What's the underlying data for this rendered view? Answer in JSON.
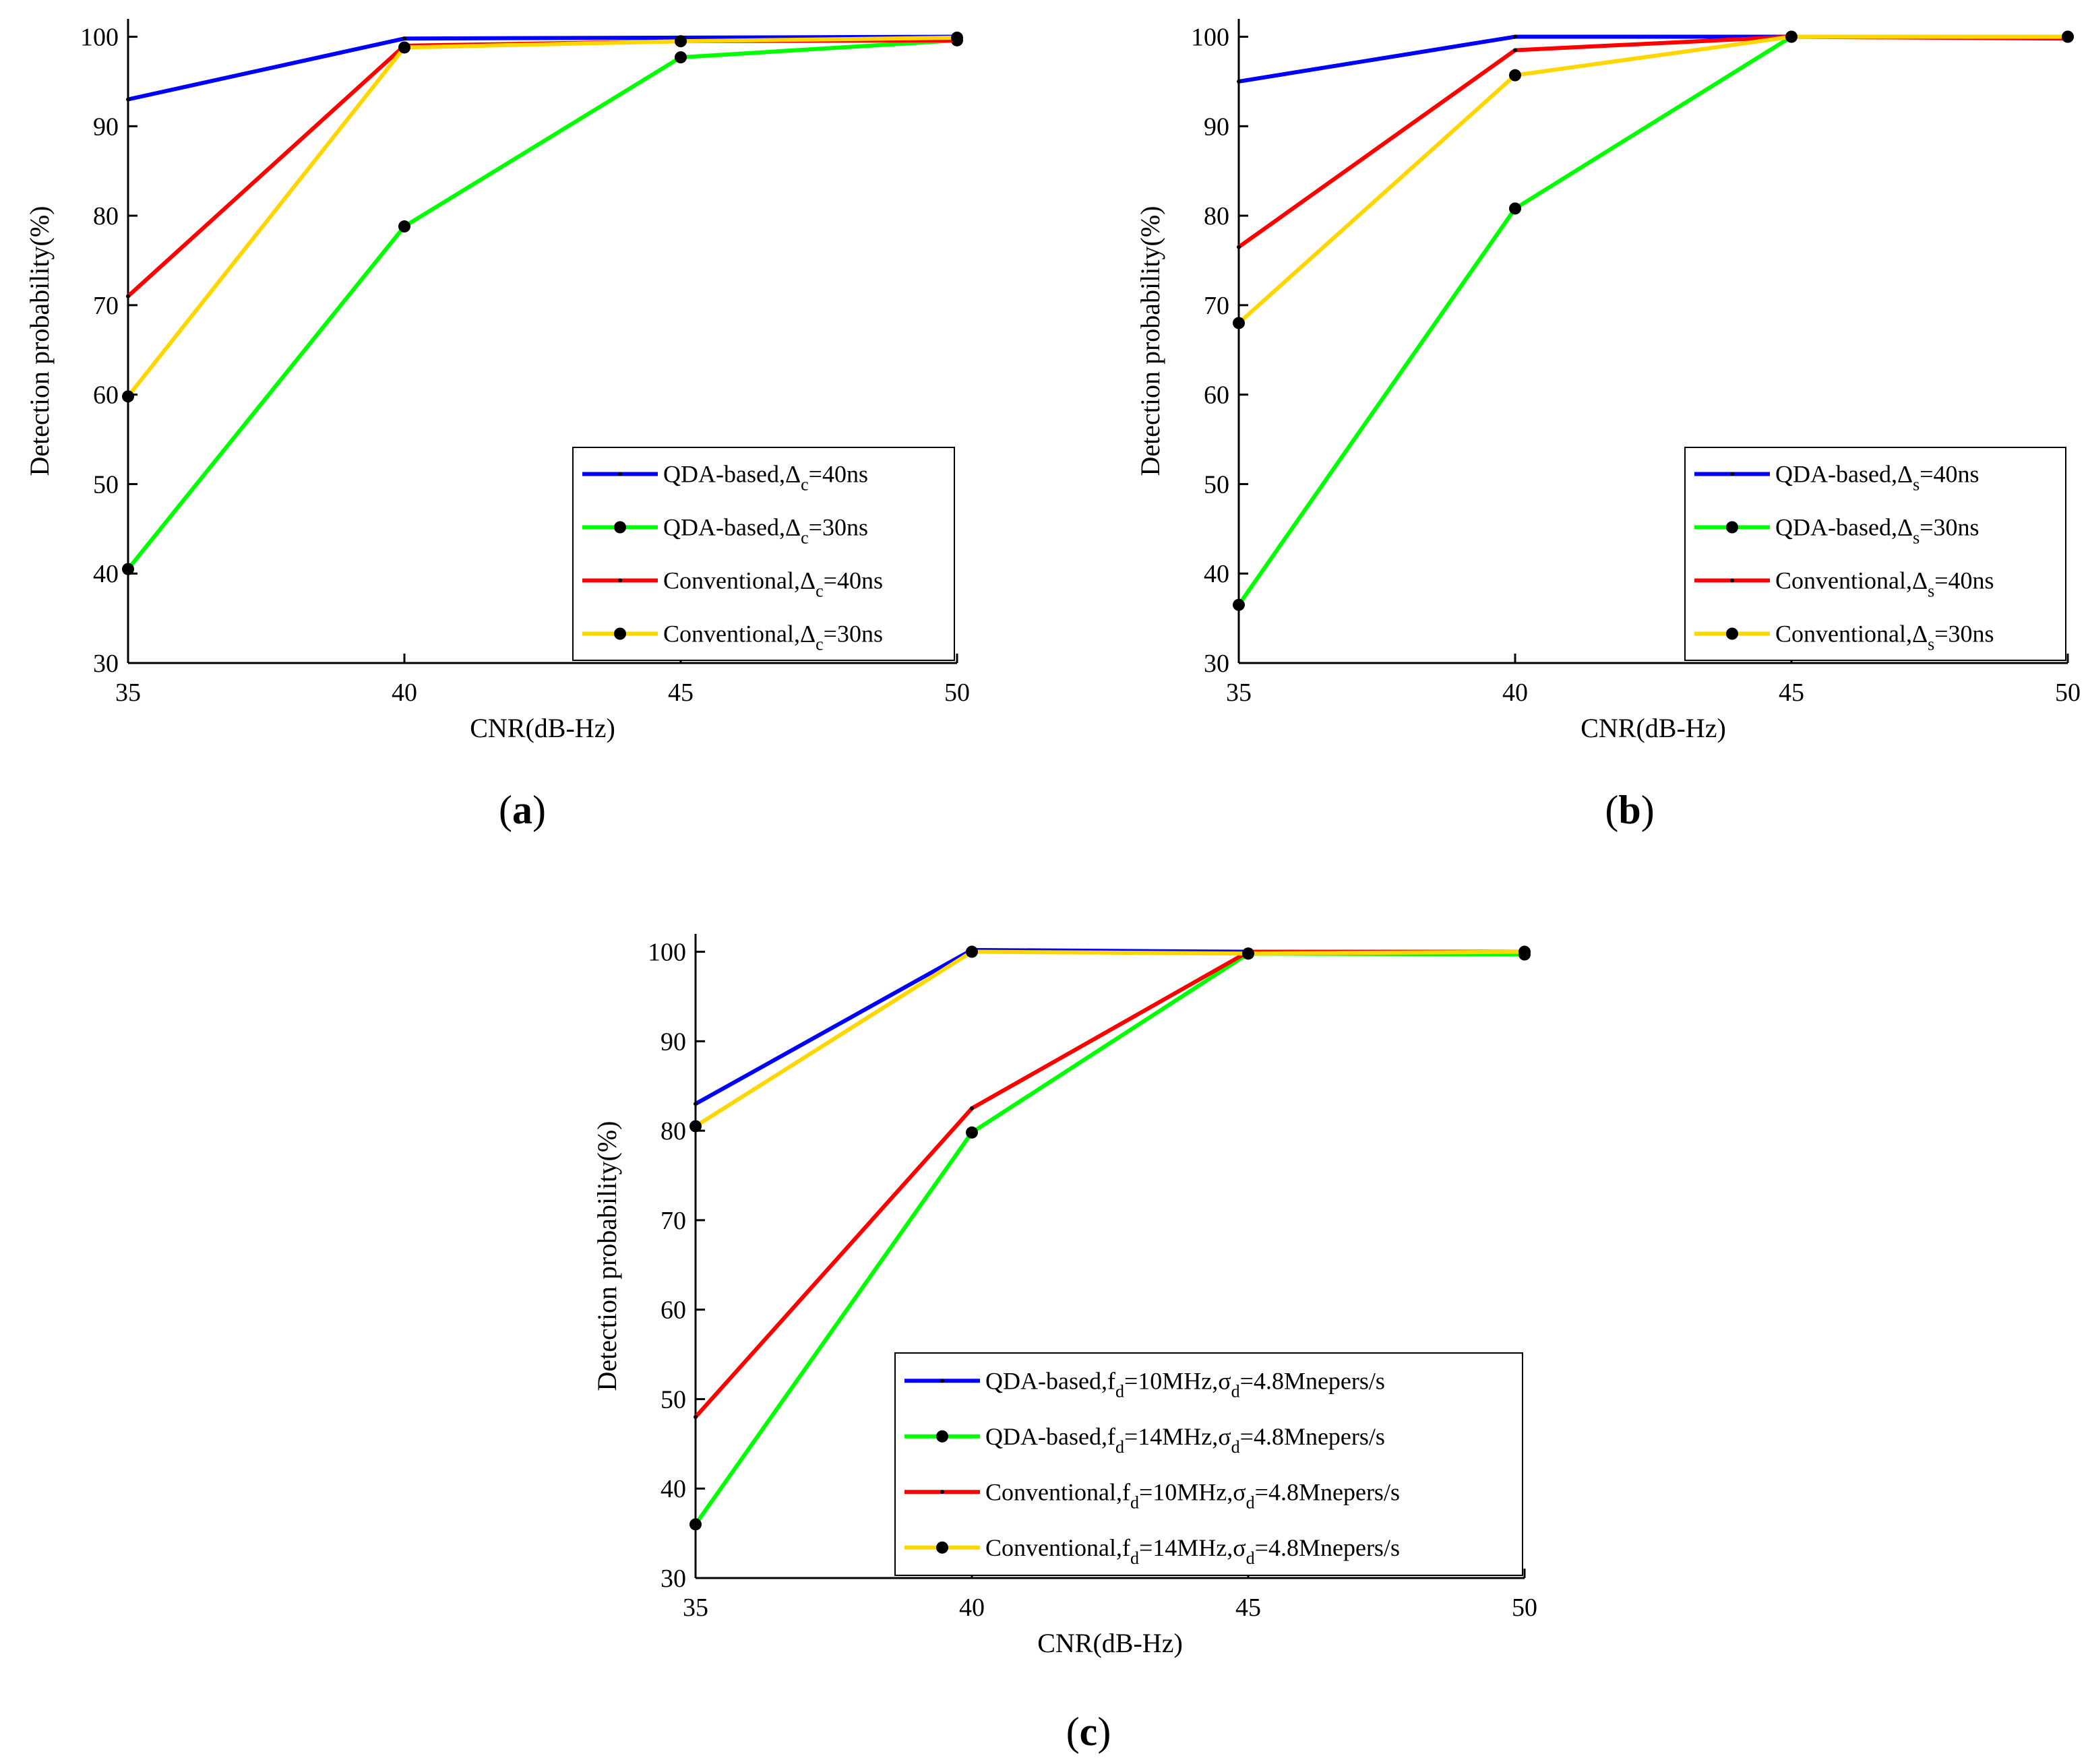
{
  "figure": {
    "panels": [
      {
        "id": "a",
        "label_open": "(",
        "label_letter": "a",
        "label_close": ")"
      },
      {
        "id": "b",
        "label_open": "(",
        "label_letter": "b",
        "label_close": ")"
      },
      {
        "id": "c",
        "label_open": "(",
        "label_letter": "c",
        "label_close": ")"
      }
    ]
  },
  "chart_data": [
    {
      "id": "a",
      "type": "line",
      "xlabel": "CNR(dB-Hz)",
      "ylabel": "Detection probability(%)",
      "x": [
        35,
        40,
        45,
        50
      ],
      "xticks": [
        "35",
        "40",
        "45",
        "50"
      ],
      "yticks": [
        "30",
        "40",
        "50",
        "60",
        "70",
        "80",
        "90",
        "100"
      ],
      "xlim": [
        35,
        50
      ],
      "ylim": [
        30,
        102
      ],
      "legend_position": "lower-right",
      "series": [
        {
          "name": "QDA-based,Δc=40ns",
          "legend_parts": [
            "QDA-based,Δ",
            "c",
            "=40ns"
          ],
          "color": "#0000ff",
          "marker": "dot-small",
          "values": [
            93.0,
            99.8,
            99.9,
            100.0
          ]
        },
        {
          "name": "QDA-based,Δc=30ns",
          "legend_parts": [
            "QDA-based,Δ",
            "c",
            "=30ns"
          ],
          "color": "#00ff00",
          "marker": "dot-large",
          "values": [
            40.5,
            78.8,
            97.7,
            99.6
          ]
        },
        {
          "name": "Conventional,Δc=40ns",
          "legend_parts": [
            "Conventional,Δ",
            "c",
            "=40ns"
          ],
          "color": "#ff0000",
          "marker": "dot-small",
          "values": [
            71.0,
            99.0,
            99.5,
            99.6
          ]
        },
        {
          "name": "Conventional,Δc=30ns",
          "legend_parts": [
            "Conventional,Δ",
            "c",
            "=30ns"
          ],
          "color": "#ffd700",
          "marker": "dot-large",
          "values": [
            59.8,
            98.8,
            99.5,
            99.9
          ]
        }
      ]
    },
    {
      "id": "b",
      "type": "line",
      "xlabel": "CNR(dB-Hz)",
      "ylabel": "Detection probability(%)",
      "x": [
        35,
        40,
        45,
        50
      ],
      "xticks": [
        "35",
        "40",
        "45",
        "50"
      ],
      "yticks": [
        "30",
        "40",
        "50",
        "60",
        "70",
        "80",
        "90",
        "100"
      ],
      "xlim": [
        35,
        50
      ],
      "ylim": [
        30,
        102
      ],
      "legend_position": "lower-right",
      "series": [
        {
          "name": "QDA-based,Δs=40ns",
          "legend_parts": [
            "QDA-based,Δ",
            "s",
            "=40ns"
          ],
          "color": "#0000ff",
          "marker": "dot-small",
          "values": [
            95.0,
            100.0,
            100.0,
            100.0
          ]
        },
        {
          "name": "QDA-based,Δs=30ns",
          "legend_parts": [
            "QDA-based,Δ",
            "s",
            "=30ns"
          ],
          "color": "#00ff00",
          "marker": "dot-large",
          "values": [
            36.5,
            80.8,
            100.0,
            100.0
          ]
        },
        {
          "name": "Conventional,Δs=40ns",
          "legend_parts": [
            "Conventional,Δ",
            "s",
            "=40ns"
          ],
          "color": "#ff0000",
          "marker": "dot-small",
          "values": [
            76.5,
            98.5,
            100.0,
            99.8
          ]
        },
        {
          "name": "Conventional,Δs=30ns",
          "legend_parts": [
            "Conventional,Δ",
            "s",
            "=30ns"
          ],
          "color": "#ffd700",
          "marker": "dot-large",
          "values": [
            68.0,
            95.7,
            100.0,
            100.0
          ]
        }
      ]
    },
    {
      "id": "c",
      "type": "line",
      "xlabel": "CNR(dB-Hz)",
      "ylabel": "Detection probability(%)",
      "x": [
        35,
        40,
        45,
        50
      ],
      "xticks": [
        "35",
        "40",
        "45",
        "50"
      ],
      "yticks": [
        "30",
        "40",
        "50",
        "60",
        "70",
        "80",
        "90",
        "100"
      ],
      "xlim": [
        35,
        50
      ],
      "ylim": [
        30,
        102
      ],
      "legend_position": "lower-right",
      "series": [
        {
          "name": "QDA-based,fd=10MHz,σd=4.8Mnepers/s",
          "legend_parts": [
            "QDA-based,f",
            "d",
            "=10MHz,σ",
            "d",
            "=4.8Mnepers/s"
          ],
          "color": "#0000ff",
          "marker": "dot-small",
          "values": [
            83.0,
            100.2,
            100.0,
            100.0
          ]
        },
        {
          "name": "QDA-based,fd=14MHz,σd=4.8Mnepers/s",
          "legend_parts": [
            "QDA-based,f",
            "d",
            "=14MHz,σ",
            "d",
            "=4.8Mnepers/s"
          ],
          "color": "#00ff00",
          "marker": "dot-large",
          "values": [
            36.0,
            79.8,
            99.8,
            99.7
          ]
        },
        {
          "name": "Conventional,fd=10MHz,σd=4.8Mnepers/s",
          "legend_parts": [
            "Conventional,f",
            "d",
            "=10MHz,σ",
            "d",
            "=4.8Mnepers/s"
          ],
          "color": "#ff0000",
          "marker": "dot-small",
          "values": [
            48.0,
            82.5,
            100.0,
            100.0
          ]
        },
        {
          "name": "Conventional,fd=14MHz,σd=4.8Mnepers/s",
          "legend_parts": [
            "Conventional,f",
            "d",
            "=14MHz,σ",
            "d",
            "=4.8Mnepers/s"
          ],
          "color": "#ffd700",
          "marker": "dot-large",
          "values": [
            80.5,
            100.0,
            99.8,
            100.0
          ]
        }
      ]
    }
  ]
}
